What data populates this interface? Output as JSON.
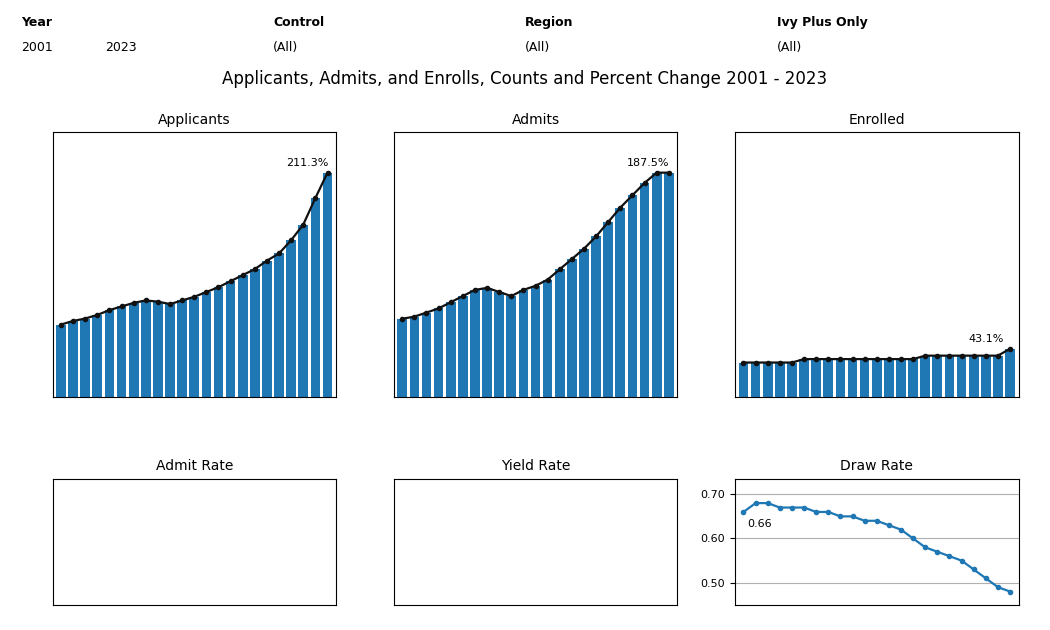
{
  "title": "Applicants, Admits, and Enrolls, Counts and Percent Change 2001 - 2023",
  "annotations": [
    [
      "Year",
      "2001",
      "2023"
    ],
    [
      "Control",
      "(All)"
    ],
    [
      "Region",
      "(All)"
    ],
    [
      "Ivy Plus Only",
      "(All)"
    ]
  ],
  "chart_data": [
    {
      "type": "bar",
      "title": "Applicants",
      "categories": [
        null,
        null,
        null,
        null,
        null,
        null,
        null,
        null,
        null,
        null,
        null,
        null,
        null,
        null,
        null,
        null,
        null,
        null,
        null,
        null,
        null,
        null,
        null
      ],
      "series": [
        {
          "type": "bar",
          "values": [
            60,
            63,
            65,
            68,
            72,
            75,
            78,
            80,
            79,
            77,
            80,
            83,
            87,
            91,
            96,
            101,
            106,
            113,
            119,
            130,
            143,
            165,
            186
          ]
        },
        {
          "type": "line",
          "color": "#111111",
          "marker": "o",
          "values": [
            60,
            63,
            65,
            68,
            72,
            75,
            78,
            80,
            79,
            77,
            80,
            83,
            87,
            91,
            96,
            101,
            106,
            113,
            119,
            130,
            143,
            165,
            186
          ]
        }
      ],
      "ylim": [
        0,
        219.48
      ],
      "grid": false,
      "tick_labels": false,
      "annotations": [
        {
          "text": "211.3%",
          "x": 22,
          "y": 186
        }
      ]
    },
    {
      "type": "bar",
      "title": "Admits",
      "categories": [
        null,
        null,
        null,
        null,
        null,
        null,
        null,
        null,
        null,
        null,
        null,
        null,
        null,
        null,
        null,
        null,
        null,
        null,
        null,
        null,
        null,
        null,
        null
      ],
      "series": [
        {
          "type": "bar",
          "values": [
            38,
            39,
            41,
            43,
            46,
            49,
            52,
            53,
            51,
            49,
            52,
            54,
            57,
            62,
            67,
            72,
            78,
            85,
            92,
            98,
            104,
            109,
            109
          ]
        },
        {
          "type": "line",
          "color": "#111111",
          "marker": "o",
          "values": [
            38,
            39,
            41,
            43,
            46,
            49,
            52,
            53,
            51,
            49,
            52,
            54,
            57,
            62,
            67,
            72,
            78,
            85,
            92,
            98,
            104,
            109,
            109
          ]
        }
      ],
      "ylim": [
        0,
        128.62
      ],
      "grid": false,
      "tick_labels": false,
      "annotations": [
        {
          "text": "187.5%",
          "x": 22,
          "y": 109
        }
      ]
    },
    {
      "type": "bar",
      "title": "Enrolled",
      "categories": [
        null,
        null,
        null,
        null,
        null,
        null,
        null,
        null,
        null,
        null,
        null,
        null,
        null,
        null,
        null,
        null,
        null,
        null,
        null,
        null,
        null,
        null,
        null
      ],
      "series": [
        {
          "type": "bar",
          "values": [
            10,
            10,
            10,
            10,
            10,
            11,
            11,
            11,
            11,
            11,
            11,
            11,
            11,
            11,
            11,
            12,
            12,
            12,
            12,
            12,
            12,
            12,
            14
          ]
        },
        {
          "type": "line",
          "color": "#111111",
          "marker": "o",
          "values": [
            10,
            10,
            10,
            10,
            10,
            11,
            11,
            11,
            11,
            11,
            11,
            11,
            11,
            11,
            11,
            12,
            12,
            12,
            12,
            12,
            12,
            12,
            14
          ]
        }
      ],
      "ylim": [
        0,
        77
      ],
      "grid": false,
      "tick_labels": false,
      "annotations": [
        {
          "text": "43.1%",
          "x": 22,
          "y": 14
        }
      ]
    },
    {
      "type": "line",
      "title": "Admit Rate",
      "grid": false,
      "tick_labels": false
    },
    {
      "type": "line",
      "title": "Yield Rate",
      "grid": false,
      "tick_labels": false
    },
    {
      "type": "line",
      "title": "Draw Rate",
      "categories": [
        null,
        null,
        null,
        null,
        null,
        null,
        null,
        null,
        null,
        null,
        null,
        null,
        null,
        null,
        null,
        null,
        null,
        null,
        null,
        null,
        null,
        null,
        null
      ],
      "series": [
        {
          "type": "line",
          "marker": "o",
          "values": [
            0.66,
            0.68,
            0.68,
            0.67,
            0.67,
            0.67,
            0.66,
            0.66,
            0.65,
            0.65,
            0.64,
            0.64,
            0.63,
            0.62,
            0.6,
            0.58,
            0.57,
            0.56,
            0.55,
            0.53,
            0.51,
            0.49,
            0.48
          ]
        }
      ],
      "ylim": [
        0.45,
        0.735
      ],
      "yticks": [
        {
          "value": 0.7,
          "label": "0.70"
        },
        {
          "value": 0.6,
          "label": "0.60"
        },
        {
          "value": 0.5,
          "label": "0.50"
        }
      ],
      "grid": true,
      "tick_labels": "y",
      "annotations": [
        {
          "text": "0.66",
          "x": 0,
          "y": 0.66
        }
      ]
    }
  ]
}
